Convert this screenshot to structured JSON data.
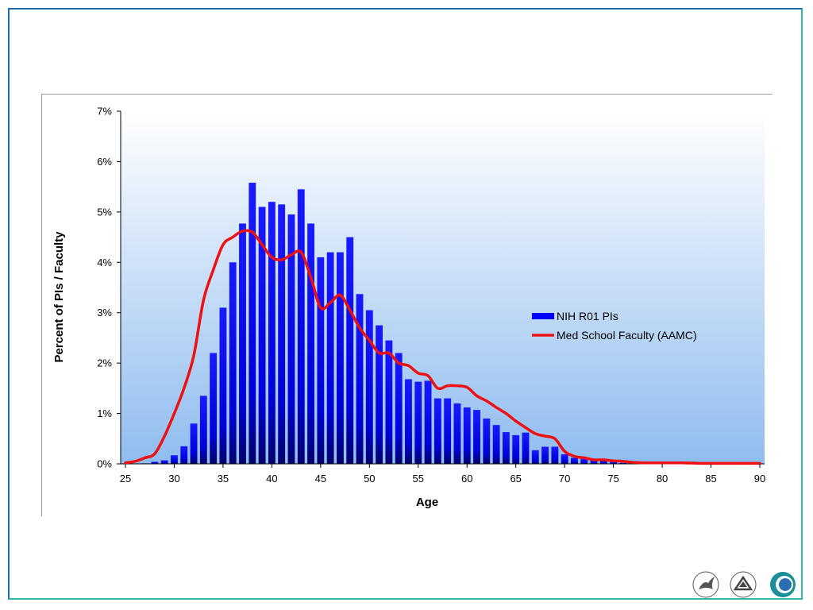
{
  "chart_data": {
    "type": "bar",
    "xlabel": "Age",
    "ylabel": "Percent of PIs / Faculty",
    "xlim": [
      25,
      90
    ],
    "ylim": [
      0,
      7
    ],
    "x_ticks": [
      25,
      30,
      35,
      40,
      45,
      50,
      55,
      60,
      65,
      70,
      75,
      80,
      85,
      90
    ],
    "y_ticks": [
      0,
      1,
      2,
      3,
      4,
      5,
      6,
      7
    ],
    "y_tick_labels": [
      "0%",
      "1%",
      "2%",
      "3%",
      "4%",
      "5%",
      "6%",
      "7%"
    ],
    "legend_position": "right",
    "series": [
      {
        "name": "NIH R01 PIs",
        "kind": "bar",
        "color": "#0000ff",
        "x": [
          25,
          26,
          27,
          28,
          29,
          30,
          31,
          32,
          33,
          34,
          35,
          36,
          37,
          38,
          39,
          40,
          41,
          42,
          43,
          44,
          45,
          46,
          47,
          48,
          49,
          50,
          51,
          52,
          53,
          54,
          55,
          56,
          57,
          58,
          59,
          60,
          61,
          62,
          63,
          64,
          65,
          66,
          67,
          68,
          69,
          70,
          71,
          72,
          73,
          74,
          75,
          76,
          77,
          78,
          79,
          80
        ],
        "values": [
          0,
          0,
          0.01,
          0.04,
          0.07,
          0.17,
          0.35,
          0.8,
          1.35,
          2.2,
          3.1,
          4.0,
          4.77,
          5.58,
          5.1,
          5.2,
          5.15,
          4.95,
          5.45,
          4.77,
          4.1,
          4.2,
          4.2,
          4.5,
          3.37,
          3.05,
          2.75,
          2.45,
          2.2,
          1.68,
          1.63,
          1.65,
          1.3,
          1.3,
          1.2,
          1.12,
          1.07,
          0.9,
          0.77,
          0.63,
          0.57,
          0.62,
          0.27,
          0.34,
          0.34,
          0.19,
          0.12,
          0.1,
          0.07,
          0.07,
          0.04,
          0.02,
          0.01,
          0.01,
          0.01,
          0
        ]
      },
      {
        "name": "Med School Faculty (AAMC)",
        "kind": "line",
        "color": "#ee1111",
        "x": [
          25,
          26,
          27,
          28,
          29,
          30,
          31,
          32,
          33,
          34,
          35,
          36,
          37,
          38,
          39,
          40,
          41,
          42,
          43,
          44,
          45,
          46,
          47,
          48,
          49,
          50,
          51,
          52,
          53,
          54,
          55,
          56,
          57,
          58,
          59,
          60,
          61,
          62,
          63,
          64,
          65,
          66,
          67,
          68,
          69,
          70,
          71,
          72,
          73,
          74,
          75,
          76,
          77,
          78,
          79,
          80,
          82,
          84,
          86,
          88,
          90
        ],
        "values": [
          0.02,
          0.05,
          0.12,
          0.2,
          0.55,
          1.0,
          1.5,
          2.15,
          3.25,
          3.85,
          4.35,
          4.5,
          4.62,
          4.6,
          4.35,
          4.1,
          4.05,
          4.15,
          4.2,
          3.7,
          3.1,
          3.2,
          3.35,
          3.05,
          2.7,
          2.45,
          2.2,
          2.2,
          2.0,
          1.95,
          1.8,
          1.75,
          1.5,
          1.55,
          1.55,
          1.52,
          1.35,
          1.25,
          1.12,
          1.0,
          0.85,
          0.72,
          0.6,
          0.55,
          0.5,
          0.25,
          0.15,
          0.12,
          0.08,
          0.08,
          0.06,
          0.05,
          0.03,
          0.02,
          0.02,
          0.02,
          0.02,
          0.01,
          0.01,
          0.01,
          0.01
        ]
      }
    ]
  }
}
